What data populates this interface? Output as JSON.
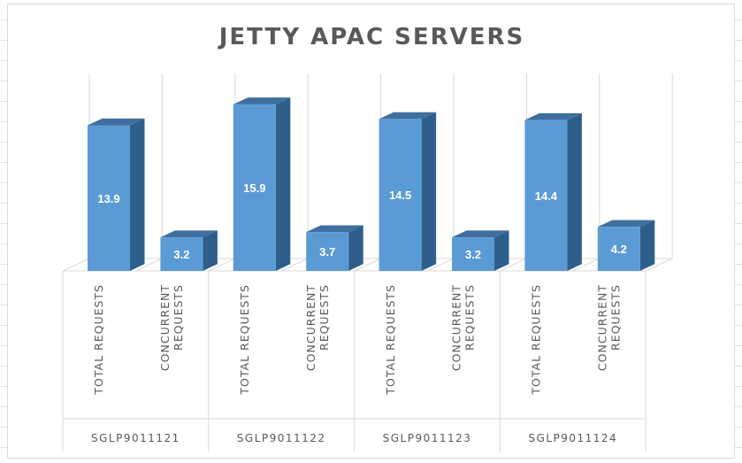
{
  "chart_data": {
    "type": "bar",
    "title": "JETTY APAC SERVERS",
    "groups": [
      "SGLP9011121",
      "SGLP9011122",
      "SGLP9011123",
      "SGLP9011124"
    ],
    "categories": [
      "TOTAL REQUESTS",
      "CONCURRENT REQUESTS"
    ],
    "values": [
      [
        13.9,
        3.2
      ],
      [
        15.9,
        3.7
      ],
      [
        14.5,
        3.2
      ],
      [
        14.4,
        4.2
      ]
    ],
    "value_labels": [
      [
        "13.9",
        "3.2"
      ],
      [
        "15.9",
        "3.7"
      ],
      [
        "14.5",
        "3.2"
      ],
      [
        "14.4",
        "4.2"
      ]
    ],
    "xlabel": "",
    "ylabel": "",
    "ylim": [
      0,
      18
    ],
    "gridlines": true,
    "legend": "none",
    "colors": {
      "bar_front": "#5b9bd5",
      "bar_side": "#2e5f8c",
      "bar_top": "#3f6f9e",
      "grid": "#d9d9d9",
      "text": "#595959"
    }
  }
}
